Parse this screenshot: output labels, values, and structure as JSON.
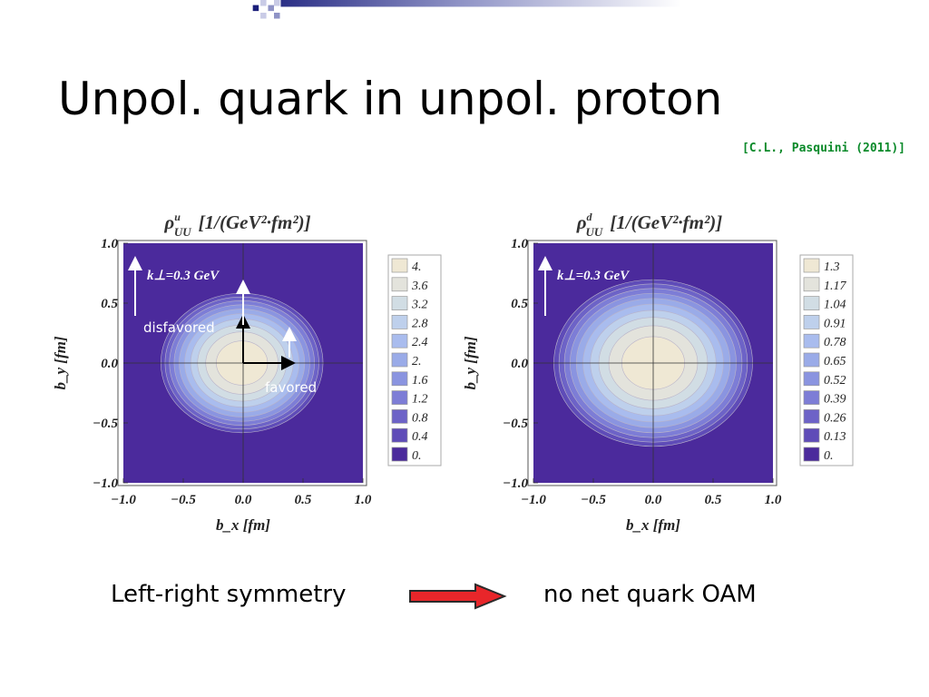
{
  "slide": {
    "title": "Unpol. quark in unpol. proton",
    "citation": "[C.L., Pasquini (2011)]",
    "left_text": "Left-right symmetry",
    "right_text": "no net quark OAM",
    "arrow_color": "#e8262a"
  },
  "chart_data": [
    {
      "type": "heatmap",
      "title": "ρ^u_UU [1/(GeV²·fm²)]",
      "title_main": "ρ",
      "title_sup": "u",
      "title_sub": "UU",
      "title_units": "[1/(GeV²·fm²)]",
      "xlabel": "b_x [fm]",
      "ylabel": "b_y [fm]",
      "xlim": [
        -1.0,
        1.0
      ],
      "ylim": [
        -1.0,
        1.0
      ],
      "x_ticks": [
        "−1.0",
        "−0.5",
        "0.0",
        "0.5",
        "1.0"
      ],
      "y_ticks": [
        "1.0",
        "0.5",
        "0.0",
        "−0.5",
        "−1.0"
      ],
      "contour_levels": [
        0.0,
        0.4,
        0.8,
        1.2,
        1.6,
        2.0,
        2.4,
        2.8,
        3.2,
        3.6,
        4.0
      ],
      "legend_labels": [
        "4.",
        "3.6",
        "3.2",
        "2.8",
        "2.4",
        "2.",
        "1.6",
        "1.2",
        "0.8",
        "0.4",
        "0."
      ],
      "center": [
        -0.01,
        0.0
      ],
      "outer_radius": [
        0.71,
        0.61
      ],
      "annotation": "k⊥=0.3 GeV",
      "labels": {
        "disfavored": "disfavored",
        "favored": "favored"
      }
    },
    {
      "type": "heatmap",
      "title": "ρ^d_UU [1/(GeV²·fm²)]",
      "title_main": "ρ",
      "title_sup": "d",
      "title_sub": "UU",
      "title_units": "[1/(GeV²·fm²)]",
      "xlabel": "b_x [fm]",
      "ylabel": "b_y [fm]",
      "xlim": [
        -1.0,
        1.0
      ],
      "ylim": [
        -1.0,
        1.0
      ],
      "x_ticks": [
        "−1.0",
        "−0.5",
        "0.0",
        "0.5",
        "1.0"
      ],
      "y_ticks": [
        "1.0",
        "0.5",
        "0.0",
        "−0.5",
        "−1.0"
      ],
      "contour_levels": [
        0.0,
        0.13,
        0.26,
        0.39,
        0.52,
        0.65,
        0.78,
        0.91,
        1.04,
        1.17,
        1.3
      ],
      "legend_labels": [
        "1.3",
        "1.17",
        "1.04",
        "0.91",
        "0.78",
        "0.65",
        "0.52",
        "0.39",
        "0.26",
        "0.13",
        "0."
      ],
      "center": [
        0.0,
        0.0
      ],
      "outer_radius": [
        0.87,
        0.73
      ],
      "annotation": "k⊥=0.3 GeV"
    }
  ],
  "legend_colors": [
    "#efe8d4",
    "#e3e3dc",
    "#d1dde4",
    "#bed0ec",
    "#a9bcee",
    "#9aabe8",
    "#8a94e0",
    "#7d7dd6",
    "#6d63c7",
    "#5f4cb8",
    "#4b2a9c"
  ]
}
